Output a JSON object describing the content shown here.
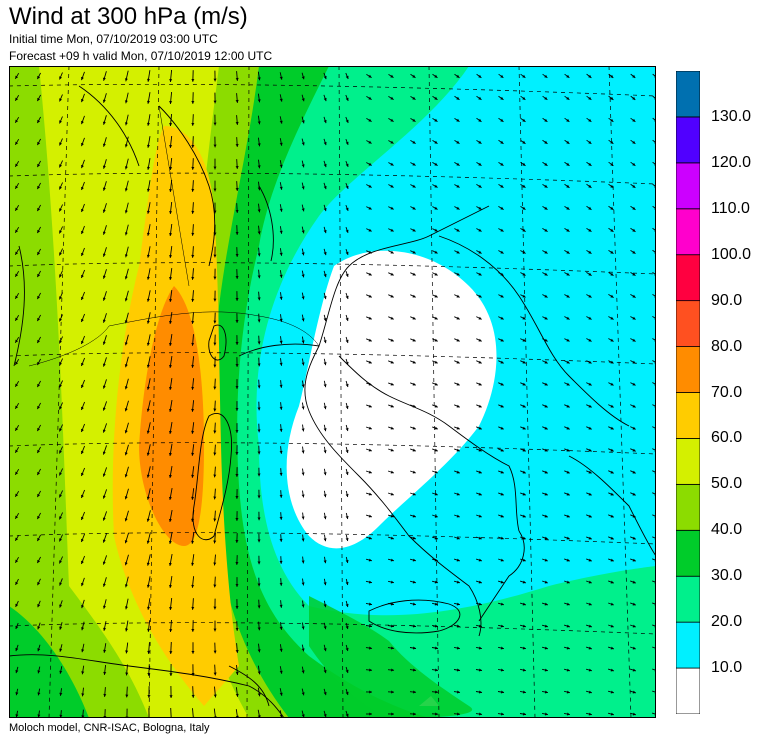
{
  "header": {
    "title": "Wind at 300 hPa (m/s)",
    "initial_time": "Initial time  Mon, 07/10/2019 03:00 UTC",
    "forecast_valid": "Forecast +09 h valid  Mon, 07/10/2019 12:00 UTC"
  },
  "footer": {
    "credit": "Moloch model, CNR-ISAC, Bologna, Italy"
  },
  "legend": {
    "levels": [
      {
        "label": "10.0",
        "color": "#ffffff"
      },
      {
        "label": "20.0",
        "color": "#00f0ff"
      },
      {
        "label": "30.0",
        "color": "#00f08c"
      },
      {
        "label": "40.0",
        "color": "#00cc2a"
      },
      {
        "label": "50.0",
        "color": "#8cdc00"
      },
      {
        "label": "60.0",
        "color": "#d4f000"
      },
      {
        "label": "70.0",
        "color": "#ffcc00"
      },
      {
        "label": "80.0",
        "color": "#ff8c00"
      },
      {
        "label": "90.0",
        "color": "#ff5020"
      },
      {
        "label": "100.0",
        "color": "#ff0040"
      },
      {
        "label": "110.0",
        "color": "#ff00cc"
      },
      {
        "label": "120.0",
        "color": "#cc00ff"
      },
      {
        "label": "130.0",
        "color": "#5000ff"
      },
      {
        "label": "",
        "color": "#0070b0"
      }
    ]
  }
}
